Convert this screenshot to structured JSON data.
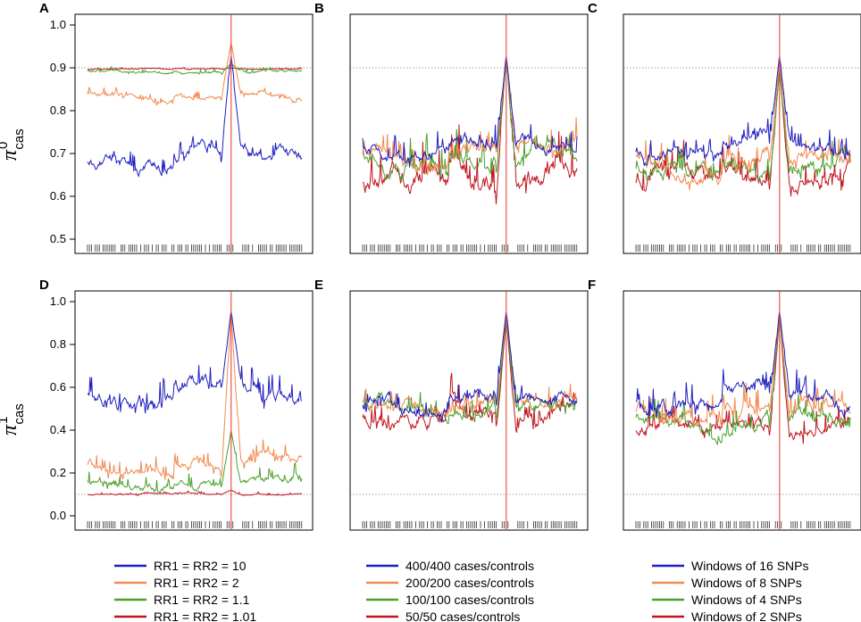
{
  "figure": {
    "ylabel_top": {
      "symbol": "π",
      "superscript": "0",
      "subscript": "cas"
    },
    "ylabel_bottom": {
      "symbol": "π",
      "superscript": "1",
      "subscript": "cas"
    }
  },
  "chart_data": [
    {
      "id": "A",
      "type": "line",
      "row": 0,
      "col": 0,
      "ylim": [
        0.5,
        1.0
      ],
      "yticks": [
        "0.5",
        "0.6",
        "0.7",
        "0.8",
        "0.9",
        "1.0"
      ],
      "ref_line": 0.9,
      "show_yticks": true,
      "series": [
        {
          "name": "RR1 = RR2 = 10",
          "base": 0.68,
          "amp": 0.05,
          "peak": 0.93,
          "color": "#1f1fbf"
        },
        {
          "name": "RR1 = RR2 = 2",
          "base": 0.83,
          "amp": 0.02,
          "peak": 0.96,
          "color": "#f08a50"
        },
        {
          "name": "RR1 = RR2 = 1.1",
          "base": 0.89,
          "amp": 0.01,
          "peak": 0.91,
          "color": "#4aa02c"
        },
        {
          "name": "RR1 = RR2 = 1.01",
          "base": 0.897,
          "amp": 0.003,
          "peak": 0.9,
          "color": "#c0141e"
        }
      ]
    },
    {
      "id": "B",
      "type": "line",
      "row": 0,
      "col": 1,
      "ylim": [
        0.5,
        1.0
      ],
      "yticks": [
        "0.5",
        "0.6",
        "0.7",
        "0.8",
        "0.9",
        "1.0"
      ],
      "ref_line": 0.9,
      "show_yticks": false,
      "series": [
        {
          "name": "400/400 cases/controls",
          "base": 0.7,
          "amp": 0.05,
          "peak": 0.93,
          "color": "#1f1fbf"
        },
        {
          "name": "200/200 cases/controls",
          "base": 0.69,
          "amp": 0.06,
          "peak": 0.93,
          "color": "#f08a50"
        },
        {
          "name": "100/100 cases/controls",
          "base": 0.67,
          "amp": 0.07,
          "peak": 0.92,
          "color": "#4aa02c"
        },
        {
          "name": "50/50 cases/controls",
          "base": 0.63,
          "amp": 0.09,
          "peak": 0.93,
          "color": "#c0141e"
        }
      ]
    },
    {
      "id": "C",
      "type": "line",
      "row": 0,
      "col": 2,
      "ylim": [
        0.5,
        1.0
      ],
      "yticks": [
        "0.5",
        "0.6",
        "0.7",
        "0.8",
        "0.9",
        "1.0"
      ],
      "ref_line": 0.9,
      "show_yticks": false,
      "series": [
        {
          "name": "Windows of 16 SNPs",
          "base": 0.71,
          "amp": 0.05,
          "peak": 0.93,
          "color": "#1f1fbf"
        },
        {
          "name": "Windows of 8 SNPs",
          "base": 0.67,
          "amp": 0.06,
          "peak": 0.92,
          "color": "#f08a50"
        },
        {
          "name": "Windows of 4 SNPs",
          "base": 0.65,
          "amp": 0.06,
          "peak": 0.9,
          "color": "#4aa02c"
        },
        {
          "name": "Windows of 2 SNPs",
          "base": 0.64,
          "amp": 0.06,
          "peak": 0.9,
          "color": "#c0141e"
        }
      ]
    },
    {
      "id": "D",
      "type": "line",
      "row": 1,
      "col": 0,
      "ylim": [
        0.0,
        1.0
      ],
      "yticks": [
        "0.0",
        "0.2",
        "0.4",
        "0.6",
        "0.8",
        "1.0"
      ],
      "ref_line": 0.1,
      "show_yticks": true,
      "series": [
        {
          "name": "RR1 = RR2 = 10",
          "base": 0.55,
          "amp": 0.12,
          "peak": 0.96,
          "color": "#1f1fbf"
        },
        {
          "name": "RR1 = RR2 = 2",
          "base": 0.22,
          "amp": 0.08,
          "peak": 0.95,
          "color": "#f08a50"
        },
        {
          "name": "RR1 = RR2 = 1.1",
          "base": 0.14,
          "amp": 0.06,
          "peak": 0.4,
          "color": "#4aa02c"
        },
        {
          "name": "RR1 = RR2 = 1.01",
          "base": 0.1,
          "amp": 0.01,
          "peak": 0.12,
          "color": "#c0141e"
        }
      ]
    },
    {
      "id": "E",
      "type": "line",
      "row": 1,
      "col": 1,
      "ylim": [
        0.0,
        1.0
      ],
      "yticks": [
        "0.0",
        "0.2",
        "0.4",
        "0.6",
        "0.8",
        "1.0"
      ],
      "ref_line": 0.1,
      "show_yticks": false,
      "series": [
        {
          "name": "400/400 cases/controls",
          "base": 0.52,
          "amp": 0.1,
          "peak": 0.96,
          "color": "#1f1fbf"
        },
        {
          "name": "200/200 cases/controls",
          "base": 0.5,
          "amp": 0.1,
          "peak": 0.95,
          "color": "#f08a50"
        },
        {
          "name": "100/100 cases/controls",
          "base": 0.48,
          "amp": 0.1,
          "peak": 0.93,
          "color": "#4aa02c"
        },
        {
          "name": "50/50 cases/controls",
          "base": 0.44,
          "amp": 0.12,
          "peak": 0.92,
          "color": "#c0141e"
        }
      ]
    },
    {
      "id": "F",
      "type": "line",
      "row": 1,
      "col": 2,
      "ylim": [
        0.0,
        1.0
      ],
      "yticks": [
        "0.0",
        "0.2",
        "0.4",
        "0.6",
        "0.8",
        "1.0"
      ],
      "ref_line": 0.1,
      "show_yticks": false,
      "series": [
        {
          "name": "Windows of 16 SNPs",
          "base": 0.52,
          "amp": 0.12,
          "peak": 0.96,
          "color": "#1f1fbf"
        },
        {
          "name": "Windows of 8 SNPs",
          "base": 0.46,
          "amp": 0.12,
          "peak": 0.95,
          "color": "#f08a50"
        },
        {
          "name": "Windows of 4 SNPs",
          "base": 0.42,
          "amp": 0.1,
          "peak": 0.94,
          "color": "#4aa02c"
        },
        {
          "name": "Windows of 2 SNPs",
          "base": 0.4,
          "amp": 0.1,
          "peak": 0.93,
          "color": "#c0141e"
        }
      ]
    }
  ],
  "legends": [
    {
      "items": [
        {
          "label": "RR1 = RR2 = 10",
          "color": "#1f1fbf"
        },
        {
          "label": "RR1 = RR2 = 2",
          "color": "#f08a50"
        },
        {
          "label": "RR1 = RR2 = 1.1",
          "color": "#4aa02c"
        },
        {
          "label": "RR1 = RR2 = 1.01",
          "color": "#c0141e"
        }
      ]
    },
    {
      "items": [
        {
          "label": "400/400 cases/controls",
          "color": "#1f1fbf"
        },
        {
          "label": "200/200 cases/controls",
          "color": "#f08a50"
        },
        {
          "label": "100/100 cases/controls",
          "color": "#4aa02c"
        },
        {
          "label": "50/50 cases/controls",
          "color": "#c0141e"
        }
      ]
    },
    {
      "items": [
        {
          "label": "Windows of 16 SNPs",
          "color": "#1f1fbf"
        },
        {
          "label": "Windows of 8 SNPs",
          "color": "#f08a50"
        },
        {
          "label": "Windows of 4 SNPs",
          "color": "#4aa02c"
        },
        {
          "label": "Windows of 2 SNPs",
          "color": "#c0141e"
        }
      ]
    }
  ],
  "marker_color": "#e8443a"
}
